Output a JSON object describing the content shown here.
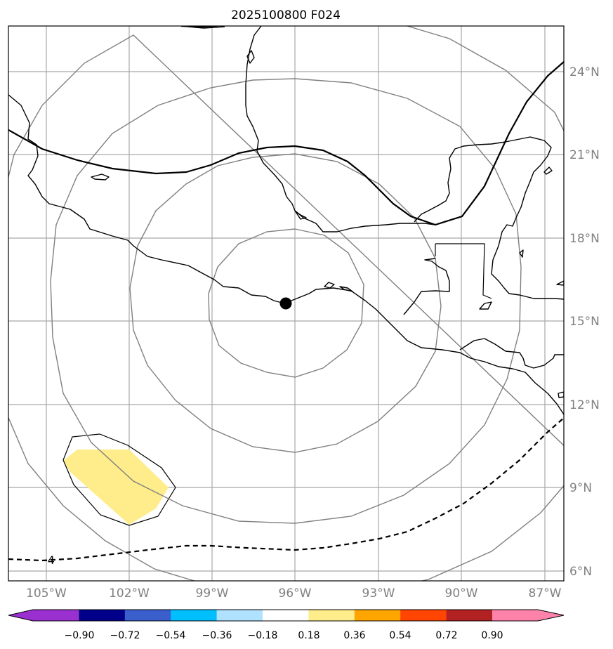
{
  "title": "2025100800 F024",
  "longitude_labels": [
    "105°W",
    "102°W",
    "99°W",
    "96°W",
    "93°W",
    "90°W",
    "87°W"
  ],
  "latitude_labels": [
    "24°N",
    "21°N",
    "18°N",
    "15°N",
    "12°N",
    "9°N",
    "6°N"
  ],
  "contour_label": "-4",
  "center_marker": {
    "lon": -96.4,
    "lat": 15.6
  },
  "colorbar": {
    "ticks": [
      "−0.90",
      "−0.72",
      "−0.54",
      "−0.36",
      "−0.18",
      "0.18",
      "0.36",
      "0.54",
      "0.72",
      "0.90"
    ],
    "colors": [
      "#9a30d0",
      "#00008b",
      "#3a5fcd",
      "#00bfff",
      "#b0e2ff",
      "#ffffff",
      "#ffec8b",
      "#ffa500",
      "#ff4500",
      "#b22222",
      "#ff82ab"
    ]
  },
  "colors": {
    "grid": "#a8a8a8",
    "rings": "#808080",
    "positive_anomaly_fill": "#ffec8b",
    "label_gray": "#808080"
  }
}
